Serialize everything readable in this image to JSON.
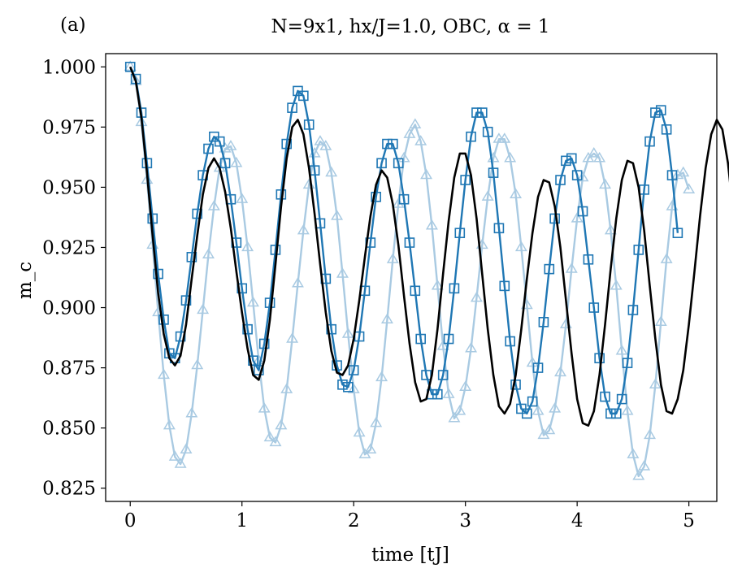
{
  "chart_data": {
    "type": "line",
    "panel_label": "(a)",
    "title": "N=9x1, hx/J=1.0, OBC, α = 1",
    "xlabel": "time [tJ]",
    "ylabel": "m_c",
    "xlim": [
      -0.22,
      5.25
    ],
    "ylim": [
      0.8195,
      1.0055
    ],
    "xticks": [
      0,
      1,
      2,
      3,
      4,
      5
    ],
    "xtick_labels": [
      "0",
      "1",
      "2",
      "3",
      "4",
      "5"
    ],
    "yticks": [
      0.825,
      0.85,
      0.875,
      0.9,
      0.925,
      0.95,
      0.975,
      1.0
    ],
    "ytick_labels": [
      "0.825",
      "0.850",
      "0.875",
      "0.900",
      "0.925",
      "0.950",
      "0.975",
      "1.000"
    ],
    "dt": 0.05,
    "series": [
      {
        "name": "light (triangle markers)",
        "color": "#1f77b4",
        "opacity": 0.38,
        "marker": "triangle",
        "x0": 0,
        "values": [
          1.0,
          0.994,
          0.977,
          0.953,
          0.926,
          0.898,
          0.872,
          0.851,
          0.838,
          0.835,
          0.841,
          0.856,
          0.876,
          0.899,
          0.922,
          0.942,
          0.958,
          0.966,
          0.967,
          0.96,
          0.945,
          0.925,
          0.902,
          0.878,
          0.858,
          0.846,
          0.844,
          0.851,
          0.866,
          0.887,
          0.91,
          0.932,
          0.951,
          0.964,
          0.969,
          0.967,
          0.956,
          0.938,
          0.914,
          0.889,
          0.866,
          0.848,
          0.839,
          0.841,
          0.852,
          0.871,
          0.895,
          0.92,
          0.943,
          0.962,
          0.972,
          0.976,
          0.969,
          0.955,
          0.934,
          0.909,
          0.884,
          0.864,
          0.854,
          0.857,
          0.867,
          0.883,
          0.904,
          0.926,
          0.946,
          0.962,
          0.97,
          0.97,
          0.962,
          0.947,
          0.925,
          0.901,
          0.877,
          0.857,
          0.847,
          0.849,
          0.858,
          0.873,
          0.893,
          0.916,
          0.937,
          0.954,
          0.962,
          0.964,
          0.962,
          0.951,
          0.932,
          0.909,
          0.882,
          0.857,
          0.839,
          0.83,
          0.834,
          0.847,
          0.868,
          0.894,
          0.92,
          0.942,
          0.955,
          0.956,
          0.949
        ]
      },
      {
        "name": "dark (square markers)",
        "color": "#1f77b4",
        "opacity": 1.0,
        "marker": "square",
        "x0": 0,
        "values": [
          1.0,
          0.995,
          0.981,
          0.96,
          0.937,
          0.914,
          0.895,
          0.881,
          0.879,
          0.888,
          0.903,
          0.921,
          0.939,
          0.955,
          0.966,
          0.971,
          0.969,
          0.96,
          0.945,
          0.927,
          0.908,
          0.891,
          0.878,
          0.874,
          0.885,
          0.902,
          0.924,
          0.947,
          0.968,
          0.983,
          0.99,
          0.988,
          0.976,
          0.957,
          0.935,
          0.912,
          0.891,
          0.876,
          0.868,
          0.867,
          0.874,
          0.888,
          0.907,
          0.927,
          0.946,
          0.96,
          0.968,
          0.968,
          0.96,
          0.945,
          0.927,
          0.907,
          0.887,
          0.872,
          0.864,
          0.864,
          0.872,
          0.887,
          0.908,
          0.931,
          0.953,
          0.971,
          0.981,
          0.981,
          0.973,
          0.956,
          0.933,
          0.909,
          0.886,
          0.868,
          0.858,
          0.856,
          0.861,
          0.875,
          0.894,
          0.916,
          0.937,
          0.953,
          0.961,
          0.962,
          0.955,
          0.94,
          0.92,
          0.9,
          0.879,
          0.863,
          0.856,
          0.856,
          0.862,
          0.877,
          0.899,
          0.924,
          0.949,
          0.969,
          0.981,
          0.982,
          0.974,
          0.955,
          0.931
        ]
      },
      {
        "name": "black line",
        "color": "#000000",
        "opacity": 1.0,
        "marker": "none",
        "x0": 0,
        "values": [
          1.0,
          0.994,
          0.979,
          0.956,
          0.93,
          0.906,
          0.889,
          0.879,
          0.876,
          0.88,
          0.893,
          0.912,
          0.93,
          0.947,
          0.958,
          0.962,
          0.958,
          0.948,
          0.933,
          0.915,
          0.898,
          0.883,
          0.872,
          0.87,
          0.878,
          0.895,
          0.918,
          0.942,
          0.962,
          0.975,
          0.978,
          0.972,
          0.958,
          0.939,
          0.918,
          0.898,
          0.882,
          0.873,
          0.872,
          0.876,
          0.887,
          0.903,
          0.921,
          0.938,
          0.951,
          0.957,
          0.954,
          0.943,
          0.926,
          0.905,
          0.885,
          0.869,
          0.861,
          0.862,
          0.872,
          0.891,
          0.914,
          0.936,
          0.954,
          0.964,
          0.964,
          0.955,
          0.937,
          0.914,
          0.891,
          0.872,
          0.859,
          0.856,
          0.86,
          0.872,
          0.891,
          0.912,
          0.931,
          0.946,
          0.953,
          0.952,
          0.942,
          0.925,
          0.903,
          0.881,
          0.862,
          0.852,
          0.851,
          0.857,
          0.872,
          0.893,
          0.916,
          0.937,
          0.953,
          0.961,
          0.96,
          0.95,
          0.932,
          0.909,
          0.887,
          0.868,
          0.857,
          0.856,
          0.862,
          0.874,
          0.893,
          0.915,
          0.938,
          0.958,
          0.972,
          0.978,
          0.974,
          0.96,
          0.938
        ]
      }
    ]
  }
}
